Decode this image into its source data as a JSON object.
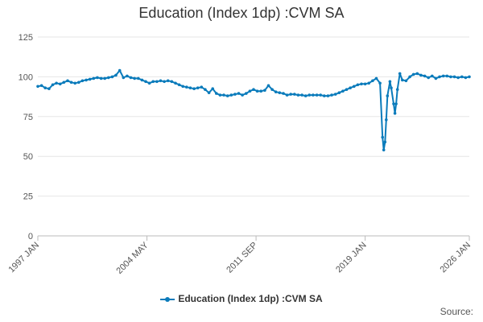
{
  "chart_data": {
    "type": "line",
    "title": "Education (Index 1dp) :CVM SA",
    "xlabel": "",
    "ylabel": "",
    "ylim": [
      0,
      125
    ],
    "yticks": [
      "0",
      "25",
      "50",
      "75",
      "100",
      "125"
    ],
    "xticks": [
      "1997 JAN",
      "2004 MAY",
      "2011 SEP",
      "2019 JAN",
      "2026 JAN"
    ],
    "grid": true,
    "legend_position": "bottom",
    "series": [
      {
        "name": "Education (Index 1dp) :CVM SA",
        "color": "#0a7bbb",
        "points": [
          [
            "1997-01",
            94
          ],
          [
            "1997-04",
            94.5
          ],
          [
            "1997-07",
            93
          ],
          [
            "1997-10",
            92.5
          ],
          [
            "1998-01",
            95
          ],
          [
            "1998-04",
            96
          ],
          [
            "1998-07",
            95.5
          ],
          [
            "1998-10",
            96.5
          ],
          [
            "1999-01",
            97.5
          ],
          [
            "1999-04",
            96.5
          ],
          [
            "1999-07",
            96
          ],
          [
            "1999-10",
            96.5
          ],
          [
            "2000-01",
            97.5
          ],
          [
            "2000-04",
            98
          ],
          [
            "2000-07",
            98.5
          ],
          [
            "2000-10",
            99
          ],
          [
            "2001-01",
            99.5
          ],
          [
            "2001-04",
            99
          ],
          [
            "2001-07",
            99
          ],
          [
            "2001-10",
            99.5
          ],
          [
            "2002-01",
            100
          ],
          [
            "2002-04",
            101
          ],
          [
            "2002-07",
            104
          ],
          [
            "2002-10",
            99.5
          ],
          [
            "2003-01",
            100.5
          ],
          [
            "2003-04",
            99.5
          ],
          [
            "2003-07",
            99
          ],
          [
            "2003-10",
            99
          ],
          [
            "2004-01",
            98
          ],
          [
            "2004-04",
            97
          ],
          [
            "2004-07",
            96
          ],
          [
            "2004-10",
            97
          ],
          [
            "2005-01",
            97
          ],
          [
            "2005-04",
            97.5
          ],
          [
            "2005-07",
            97
          ],
          [
            "2005-10",
            97.5
          ],
          [
            "2006-01",
            97
          ],
          [
            "2006-04",
            96
          ],
          [
            "2006-07",
            95
          ],
          [
            "2006-10",
            94
          ],
          [
            "2007-01",
            93.5
          ],
          [
            "2007-04",
            93
          ],
          [
            "2007-07",
            92.5
          ],
          [
            "2007-10",
            93
          ],
          [
            "2008-01",
            93.5
          ],
          [
            "2008-04",
            92
          ],
          [
            "2008-07",
            90
          ],
          [
            "2008-10",
            92.5
          ],
          [
            "2009-01",
            89.5
          ],
          [
            "2009-04",
            88.5
          ],
          [
            "2009-07",
            88.5
          ],
          [
            "2009-10",
            88
          ],
          [
            "2010-01",
            88.5
          ],
          [
            "2010-04",
            89
          ],
          [
            "2010-07",
            89.5
          ],
          [
            "2010-10",
            88.5
          ],
          [
            "2011-01",
            89.5
          ],
          [
            "2011-04",
            91
          ],
          [
            "2011-07",
            92
          ],
          [
            "2011-10",
            91
          ],
          [
            "2012-01",
            91
          ],
          [
            "2012-04",
            91.5
          ],
          [
            "2012-07",
            94.5
          ],
          [
            "2012-10",
            92
          ],
          [
            "2013-01",
            90.5
          ],
          [
            "2013-04",
            90
          ],
          [
            "2013-07",
            89.5
          ],
          [
            "2013-10",
            88.5
          ],
          [
            "2014-01",
            89
          ],
          [
            "2014-04",
            89
          ],
          [
            "2014-07",
            88.5
          ],
          [
            "2014-10",
            88.5
          ],
          [
            "2015-01",
            88
          ],
          [
            "2015-04",
            88.5
          ],
          [
            "2015-07",
            88.5
          ],
          [
            "2015-10",
            88.5
          ],
          [
            "2016-01",
            88.5
          ],
          [
            "2016-04",
            88
          ],
          [
            "2016-07",
            88
          ],
          [
            "2016-10",
            88.5
          ],
          [
            "2017-01",
            89
          ],
          [
            "2017-04",
            90
          ],
          [
            "2017-07",
            91
          ],
          [
            "2017-10",
            92
          ],
          [
            "2018-01",
            93
          ],
          [
            "2018-04",
            94
          ],
          [
            "2018-07",
            95
          ],
          [
            "2018-10",
            95.5
          ],
          [
            "2019-01",
            95.5
          ],
          [
            "2019-04",
            96
          ],
          [
            "2019-07",
            97.5
          ],
          [
            "2019-10",
            99
          ],
          [
            "2020-01",
            96
          ],
          [
            "2020-03",
            62
          ],
          [
            "2020-04",
            54
          ],
          [
            "2020-05",
            59
          ],
          [
            "2020-06",
            73
          ],
          [
            "2020-07",
            88
          ],
          [
            "2020-09",
            97
          ],
          [
            "2020-10",
            93
          ],
          [
            "2020-12",
            83
          ],
          [
            "2021-01",
            77
          ],
          [
            "2021-02",
            83
          ],
          [
            "2021-03",
            92
          ],
          [
            "2021-05",
            102
          ],
          [
            "2021-07",
            98
          ],
          [
            "2021-10",
            97.5
          ],
          [
            "2022-01",
            100
          ],
          [
            "2022-04",
            101.5
          ],
          [
            "2022-07",
            102
          ],
          [
            "2022-10",
            101
          ],
          [
            "2023-01",
            100.5
          ],
          [
            "2023-04",
            99.5
          ],
          [
            "2023-07",
            100.5
          ],
          [
            "2023-10",
            99
          ],
          [
            "2024-01",
            100
          ],
          [
            "2024-04",
            100.5
          ],
          [
            "2024-07",
            100.5
          ],
          [
            "2024-10",
            100
          ],
          [
            "2025-01",
            100
          ],
          [
            "2025-04",
            99.5
          ],
          [
            "2025-07",
            100
          ],
          [
            "2025-10",
            99.5
          ],
          [
            "2026-01",
            100
          ]
        ]
      }
    ]
  },
  "source_label": "Source:"
}
